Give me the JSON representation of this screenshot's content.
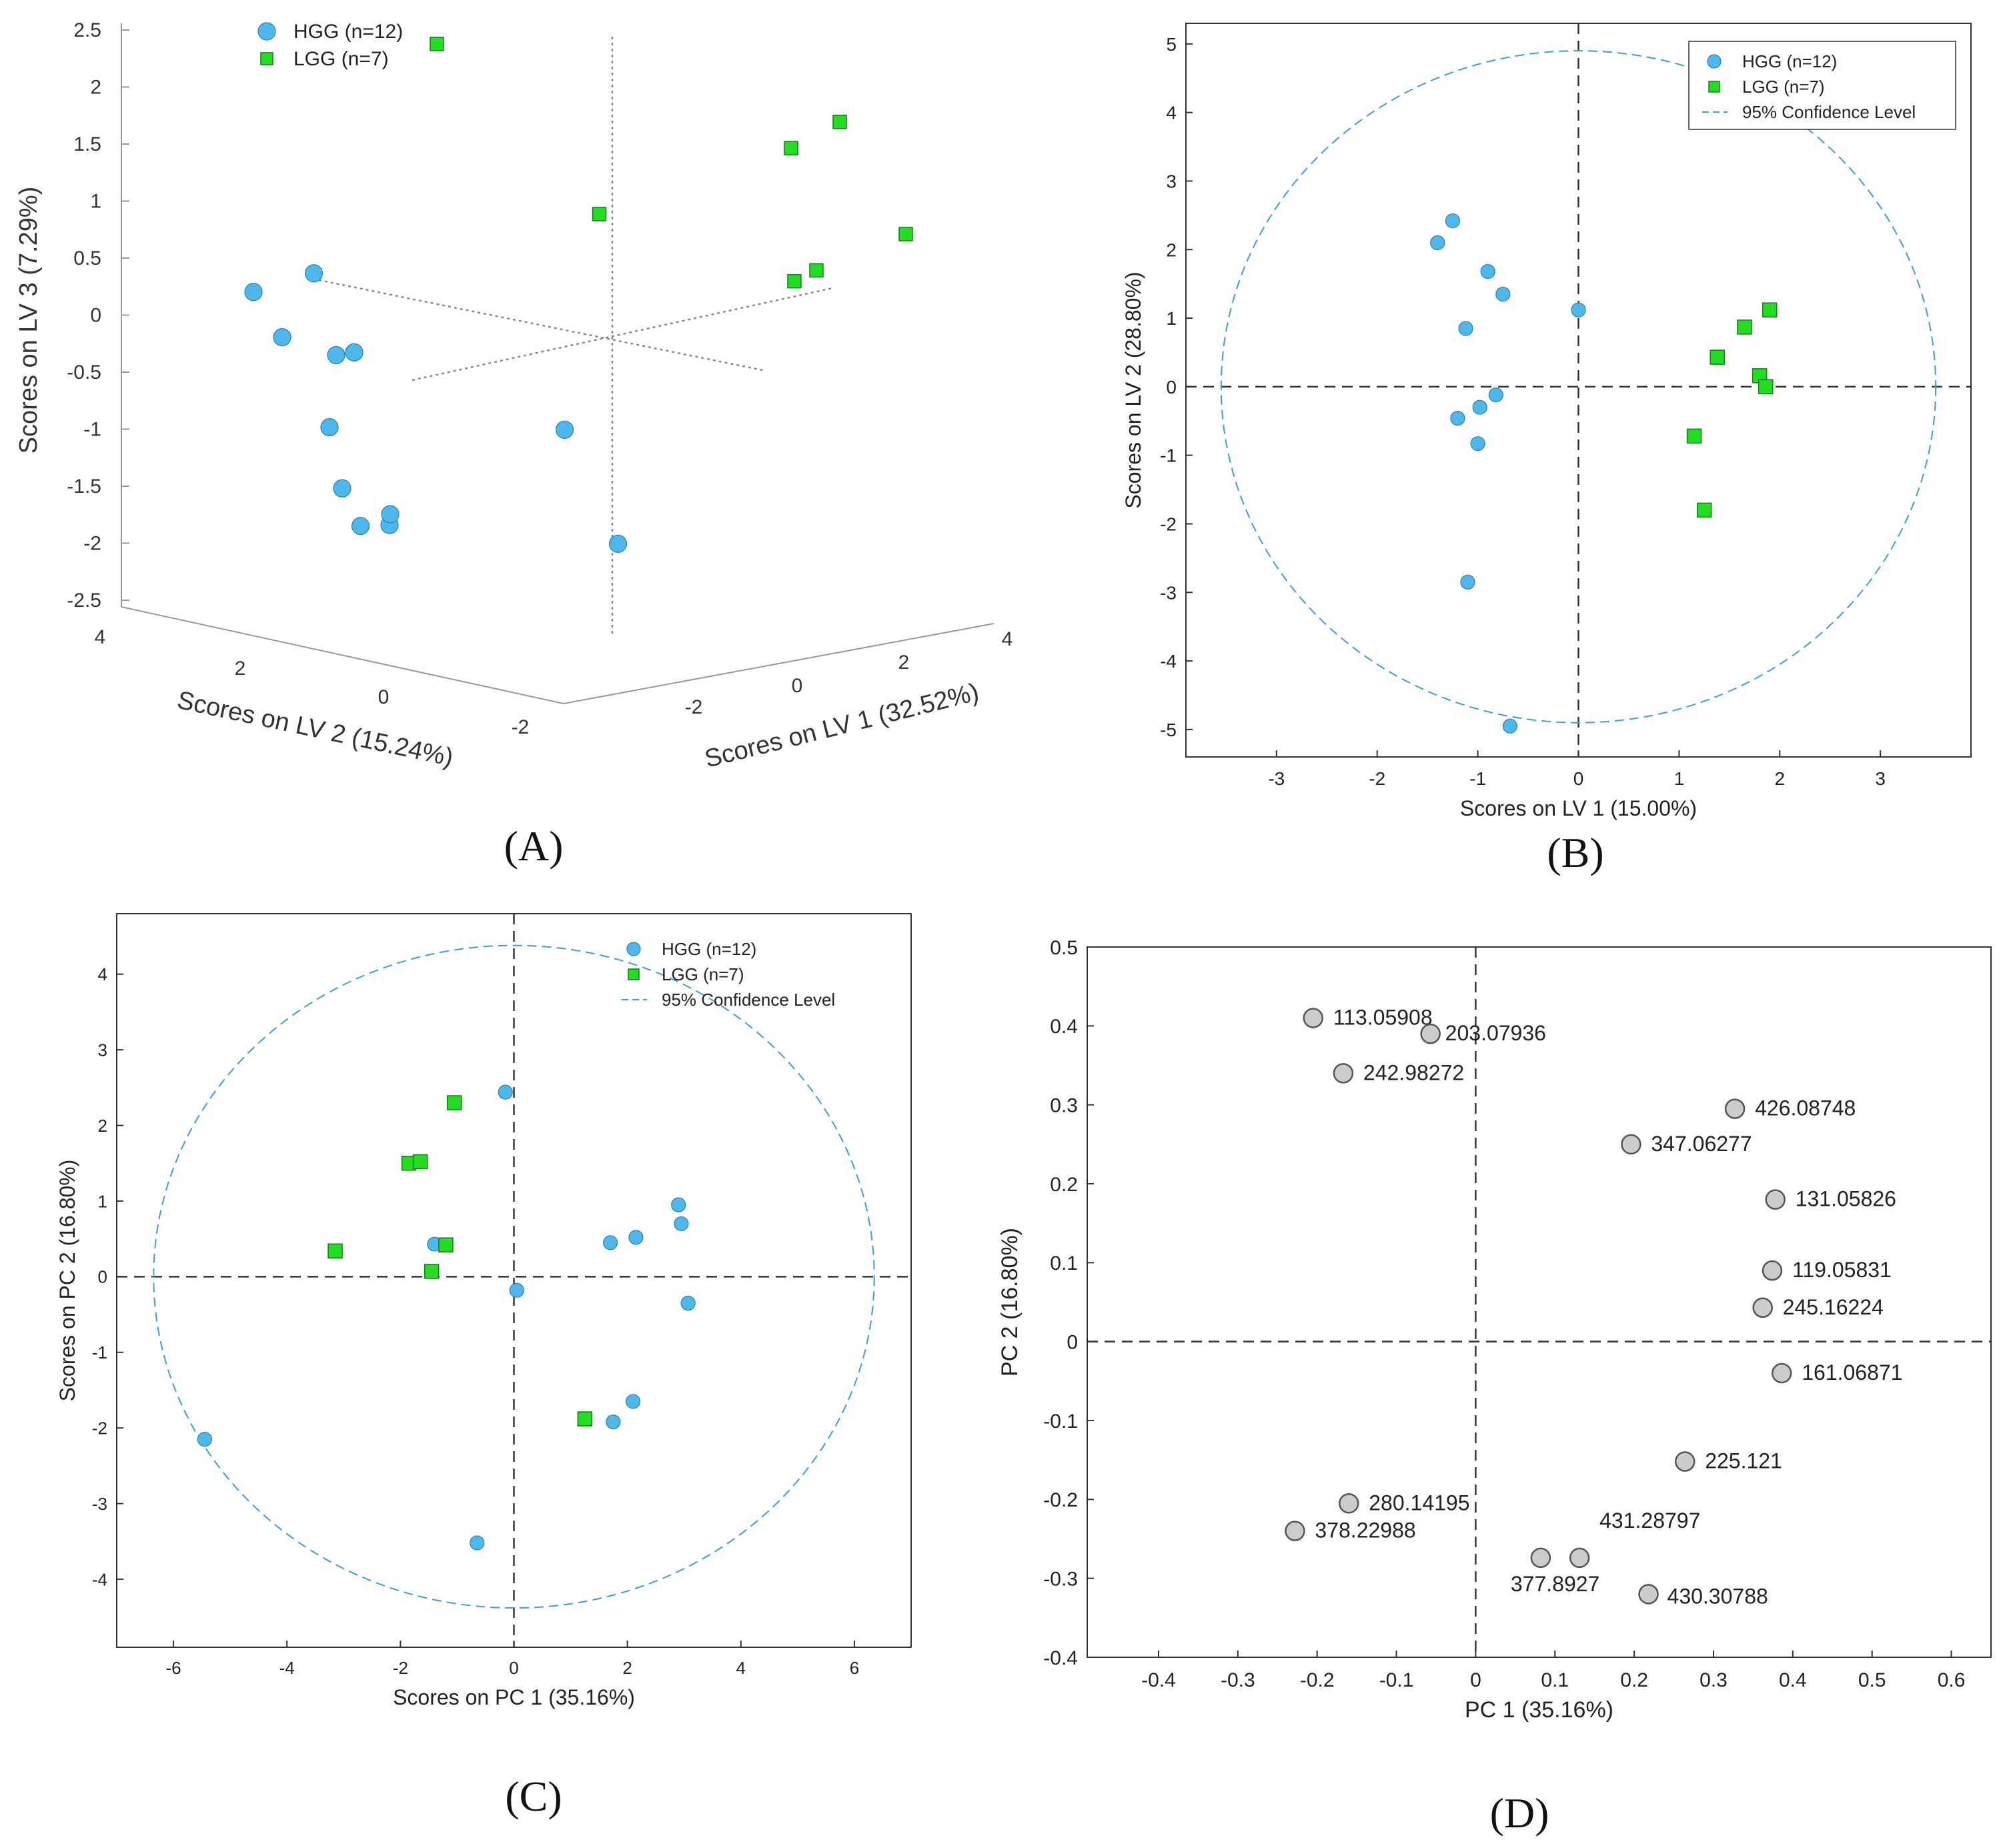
{
  "colors": {
    "hgg": "#4eb8ec",
    "lgg": "#22dd22",
    "loading": "#cccccc",
    "ellipse": "#3b9dde",
    "axis": "#333333",
    "caption": "#111111"
  },
  "chart_data": [
    {
      "id": "A",
      "caption": "(A)",
      "type": "scatter",
      "projection": "3d",
      "xlabel": "Scores on LV 1 (32.52%)",
      "ylabel": "Scores on LV 2 (15.24%)",
      "zlabel": "Scores on LV 3 (7.29%)",
      "xticks": [
        "-2",
        "0",
        "2",
        "4"
      ],
      "yticks": [
        "4",
        "2",
        "0",
        "-2"
      ],
      "zticks": [
        "2.5",
        "2",
        "1.5",
        "1",
        "0.5",
        "0",
        "-0.5",
        "-1",
        "-1.5",
        "-2",
        "-2.5"
      ],
      "zlim": [
        -2.5,
        2.5
      ],
      "legend": [
        "HGG (n=12)",
        "LGG (n=7)"
      ],
      "legend_position": "top-left",
      "series": [
        {
          "name": "HGG (n=12)",
          "marker": "circle",
          "points": [
            [
              -3.0,
              0.5,
              0.95
            ],
            [
              -3.2,
              1.2,
              0.45
            ],
            [
              -3.0,
              0.0,
              0.3
            ],
            [
              -2.8,
              -0.8,
              0.47
            ],
            [
              -2.0,
              -0.6,
              -0.12
            ],
            [
              -2.8,
              0.4,
              -0.4
            ],
            [
              -2.8,
              0.6,
              -0.87
            ],
            [
              -2.6,
              1.0,
              -1.12
            ],
            [
              -2.0,
              -0.5,
              -1.56
            ],
            [
              -1.5,
              -0.9,
              -1.63
            ],
            [
              0.2,
              -1.1,
              -1.23
            ],
            [
              0.8,
              -1.3,
              -2.33
            ]
          ]
        },
        {
          "name": "LGG (n=7)",
          "marker": "square",
          "points": [
            [
              -0.5,
              -1.9,
              1.95
            ],
            [
              0.4,
              -0.9,
              0.6
            ],
            [
              2.2,
              -1.0,
              0.85
            ],
            [
              2.7,
              -1.1,
              0.97
            ],
            [
              2.0,
              -0.6,
              -0.15
            ],
            [
              2.2,
              -0.6,
              -0.09
            ],
            [
              3.3,
              -1.1,
              -0.07
            ]
          ]
        }
      ]
    },
    {
      "id": "B",
      "caption": "(B)",
      "type": "scatter",
      "xlabel": "Scores on LV 1 (15.00%)",
      "ylabel": "Scores on LV 2 (28.80%)",
      "xlim": [
        -3.9,
        3.9
      ],
      "ylim": [
        -5.4,
        5.3
      ],
      "xticks": [
        -3,
        -2,
        -1,
        0,
        1,
        2,
        3
      ],
      "yticks": [
        -5,
        -4,
        -3,
        -2,
        -1,
        0,
        1,
        2,
        3,
        4,
        5
      ],
      "legend": [
        "HGG (n=12)",
        "LGG (n=7)",
        "95% Confidence Level"
      ],
      "legend_position": "top-right",
      "ellipse": {
        "cx": 0,
        "cy": 0,
        "rx": 3.55,
        "ry": 4.9
      },
      "series": [
        {
          "name": "HGG (n=12)",
          "marker": "circle",
          "points": [
            [
              -1.4,
              2.1
            ],
            [
              -1.25,
              2.42
            ],
            [
              -0.9,
              1.68
            ],
            [
              -0.75,
              1.35
            ],
            [
              0.0,
              1.12
            ],
            [
              -1.12,
              0.85
            ],
            [
              -0.82,
              -0.12
            ],
            [
              -0.98,
              -0.3
            ],
            [
              -1.2,
              -0.46
            ],
            [
              -1.0,
              -0.83
            ],
            [
              -1.1,
              -2.85
            ],
            [
              -0.68,
              -4.95
            ]
          ]
        },
        {
          "name": "LGG (n=7)",
          "marker": "square",
          "points": [
            [
              1.9,
              1.12
            ],
            [
              1.65,
              0.87
            ],
            [
              1.38,
              0.43
            ],
            [
              1.8,
              0.16
            ],
            [
              1.86,
              0.0
            ],
            [
              1.15,
              -0.72
            ],
            [
              1.25,
              -1.8
            ]
          ]
        }
      ]
    },
    {
      "id": "C",
      "caption": "(C)",
      "type": "scatter",
      "xlabel": "Scores on PC 1 (35.16%)",
      "ylabel": "Scores on PC 2 (16.80%)",
      "xlim": [
        -7,
        7
      ],
      "ylim": [
        -4.9,
        4.8
      ],
      "xticks": [
        -6,
        -4,
        -2,
        0,
        2,
        4,
        6
      ],
      "yticks": [
        -4,
        -3,
        -2,
        -1,
        0,
        1,
        2,
        3,
        4
      ],
      "legend": [
        "HGG (n=12)",
        "LGG (n=7)",
        "95% Confidence Level"
      ],
      "legend_position": "top-right",
      "ellipse": {
        "cx": 0,
        "cy": 0,
        "rx": 6.35,
        "ry": 4.38
      },
      "series": [
        {
          "name": "HGG (n=12)",
          "marker": "circle",
          "points": [
            [
              -0.15,
              2.44
            ],
            [
              2.9,
              0.95
            ],
            [
              2.95,
              0.7
            ],
            [
              1.7,
              0.45
            ],
            [
              2.15,
              0.52
            ],
            [
              -1.4,
              0.43
            ],
            [
              0.05,
              -0.18
            ],
            [
              3.07,
              -0.35
            ],
            [
              2.1,
              -1.65
            ],
            [
              1.75,
              -1.92
            ],
            [
              -5.45,
              -2.15
            ],
            [
              -0.65,
              -3.52
            ]
          ]
        },
        {
          "name": "LGG (n=7)",
          "marker": "square",
          "points": [
            [
              -1.05,
              2.3
            ],
            [
              -1.85,
              1.5
            ],
            [
              -1.65,
              1.52
            ],
            [
              -1.2,
              0.42
            ],
            [
              -3.15,
              0.34
            ],
            [
              -1.45,
              0.07
            ],
            [
              1.25,
              -1.88
            ]
          ]
        }
      ]
    },
    {
      "id": "D",
      "caption": "(D)",
      "type": "scatter",
      "xlabel": "PC 1 (35.16%)",
      "ylabel": "PC 2 (16.80%)",
      "xlim": [
        -0.49,
        0.65
      ],
      "ylim": [
        -0.4,
        0.5
      ],
      "xticks": [
        "-0.4",
        "-0.3",
        "-0.2",
        "-0.1",
        "0",
        "0.1",
        "0.2",
        "0.3",
        "0.4",
        "0.5",
        "0.6"
      ],
      "yticks": [
        "-0.4",
        "-0.3",
        "-0.2",
        "-0.1",
        "0",
        "0.1",
        "0.2",
        "0.3",
        "0.4",
        "0.5"
      ],
      "series": [
        {
          "name": "loadings",
          "marker": "circle",
          "points": [
            {
              "label": "113.05908",
              "x": -0.205,
              "y": 0.41
            },
            {
              "label": "203.07936",
              "x": -0.057,
              "y": 0.39
            },
            {
              "label": "242.98272",
              "x": -0.167,
              "y": 0.34
            },
            {
              "label": "426.08748",
              "x": 0.327,
              "y": 0.295
            },
            {
              "label": "347.06277",
              "x": 0.196,
              "y": 0.25
            },
            {
              "label": "131.05826",
              "x": 0.378,
              "y": 0.18
            },
            {
              "label": "119.05831",
              "x": 0.374,
              "y": 0.09
            },
            {
              "label": "245.16224",
              "x": 0.362,
              "y": 0.043
            },
            {
              "label": "161.06871",
              "x": 0.386,
              "y": -0.04
            },
            {
              "label": "225.121",
              "x": 0.264,
              "y": -0.152
            },
            {
              "label": "280.14195",
              "x": -0.16,
              "y": -0.205
            },
            {
              "label": "378.22988",
              "x": -0.228,
              "y": -0.24
            },
            {
              "label": "377.8927",
              "x": 0.082,
              "y": -0.274
            },
            {
              "label": "431.28797",
              "x": 0.131,
              "y": -0.274
            },
            {
              "label": "430.30788",
              "x": 0.218,
              "y": -0.32
            }
          ]
        }
      ]
    }
  ]
}
